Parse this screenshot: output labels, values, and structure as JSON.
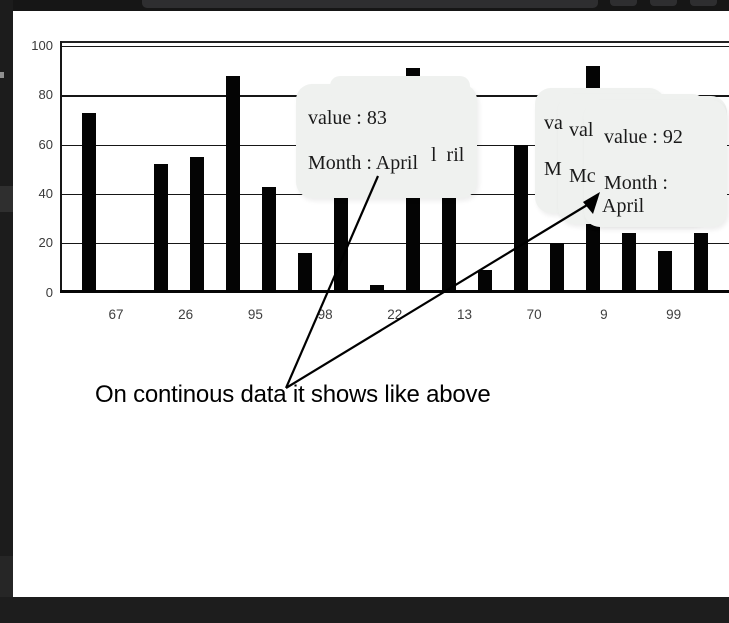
{
  "chrome": {
    "topbar_bg": "#161616",
    "inset_bg": "#2e2e30",
    "rail_bg": "#1c1c1c",
    "bottombar_bg": "#1d1d1d"
  },
  "chart_data": {
    "type": "bar",
    "title": "",
    "xlabel": "",
    "ylabel": "",
    "x_tick_labels": [
      "67",
      "26",
      "95",
      "98",
      "22",
      "13",
      "70",
      "9",
      "99"
    ],
    "values": [
      73,
      1,
      52,
      55,
      88,
      43,
      16,
      40,
      3,
      91,
      44,
      9,
      60,
      20,
      92,
      24,
      17,
      24
    ],
    "yticks": [
      0,
      20,
      40,
      60,
      80,
      100
    ],
    "ylim": [
      0,
      100
    ],
    "grid": "horizontal gridlines every 20 units",
    "legend_position": "none",
    "bar_color": "#040404"
  },
  "tooltips": {
    "middle": {
      "value_line": "value : 83",
      "month_line": "Month : April",
      "fragment": "l  ril"
    },
    "right": {
      "value_line": "value : 92",
      "month_line_1": "Month :",
      "month_line_2": "April",
      "fragment_va": "va",
      "fragment_val": "val",
      "fragment_m": "M",
      "fragment_mc": "Mc"
    }
  },
  "annotation": {
    "text": "On continous data it shows like above"
  }
}
